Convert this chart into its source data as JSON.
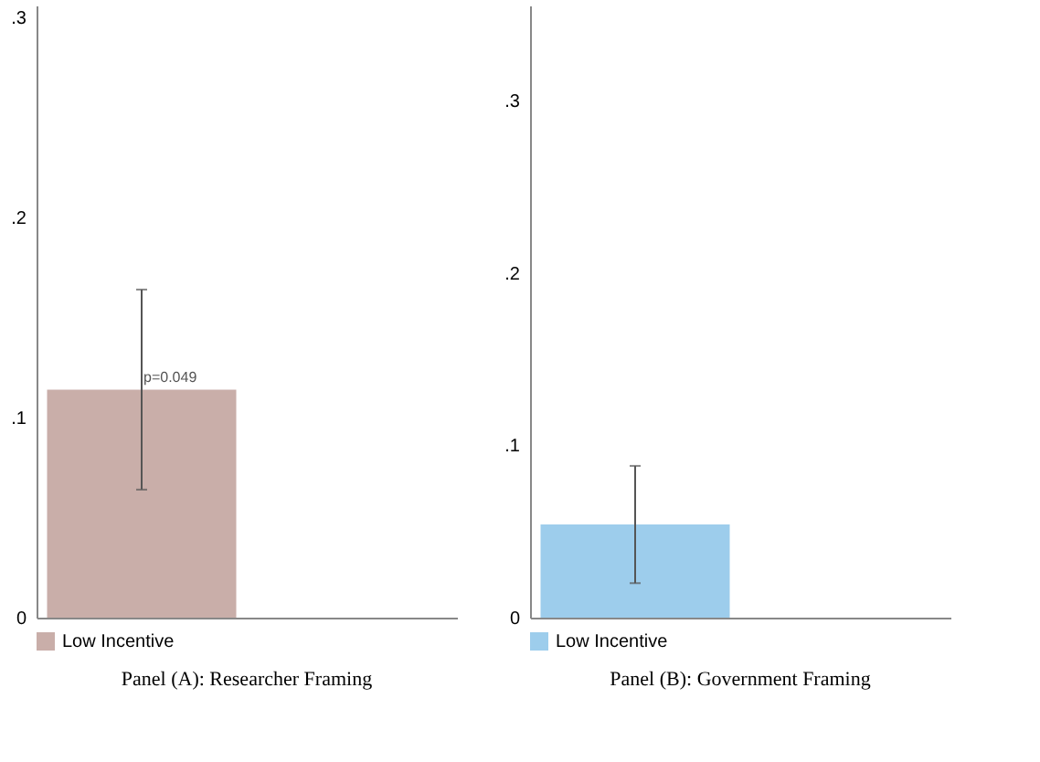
{
  "chart_data": [
    {
      "type": "bar",
      "title": "Panel (A): Researcher Framing",
      "categories": [
        null,
        null
      ],
      "series": [
        {
          "name": "Low Incentive",
          "color": "#c9aea9",
          "values": [
            0.114,
            null
          ],
          "errors": [
            [
              0.064,
              0.164
            ],
            null
          ]
        }
      ],
      "annotations": [
        {
          "text": "p=0.049",
          "y": 0.114
        }
      ],
      "ylim": [
        0,
        0.306
      ],
      "yticks": [
        0,
        {
          "value": 0.1,
          "label": ".1"
        },
        {
          "value": 0.2,
          "label": ".2"
        },
        {
          "value": 0.3,
          "label": ".3"
        }
      ],
      "grid": false,
      "legend": "bottom left",
      "tick_labels": "y"
    },
    {
      "type": "bar",
      "title": "Panel (B): Government Framing",
      "categories": [
        null,
        null
      ],
      "series": [
        {
          "name": "Low Incentive",
          "color": "#9dcdec",
          "values": [
            0.054,
            null
          ],
          "errors": [
            [
              0.02,
              0.088
            ],
            null
          ]
        }
      ],
      "ylim": [
        0,
        0.355
      ],
      "yticks": [
        0,
        {
          "value": 0.1,
          "label": ".1"
        },
        {
          "value": 0.2,
          "label": ".2"
        },
        {
          "value": 0.3,
          "label": ".3"
        }
      ],
      "grid": false,
      "legend": "bottom left",
      "tick_labels": "y"
    }
  ]
}
